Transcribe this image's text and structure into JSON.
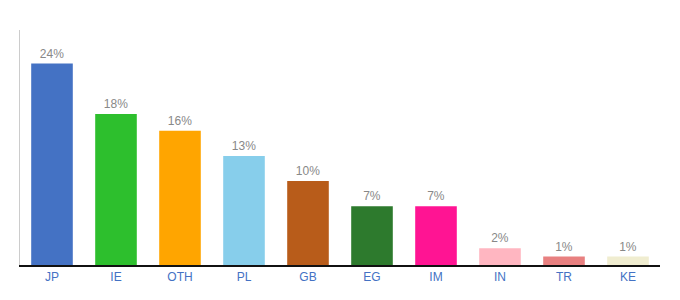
{
  "chart_data": {
    "type": "bar",
    "categories": [
      "JP",
      "IE",
      "OTH",
      "PL",
      "GB",
      "EG",
      "IM",
      "IN",
      "TR",
      "KE"
    ],
    "values": [
      24,
      18,
      16,
      13,
      10,
      7,
      7,
      2,
      1,
      1
    ],
    "value_labels": [
      "24%",
      "18%",
      "16%",
      "13%",
      "10%",
      "7%",
      "7%",
      "2%",
      "1%",
      "1%"
    ],
    "colors": [
      "#4472C4",
      "#2DBF2D",
      "#FFA500",
      "#87CEEB",
      "#B85C1A",
      "#2D7A2D",
      "#FF1493",
      "#FFB6C1",
      "#E88080",
      "#F0EDD0"
    ],
    "ylim": [
      0,
      28
    ],
    "data_labels": true,
    "tick_labels": "x",
    "grid": false
  }
}
